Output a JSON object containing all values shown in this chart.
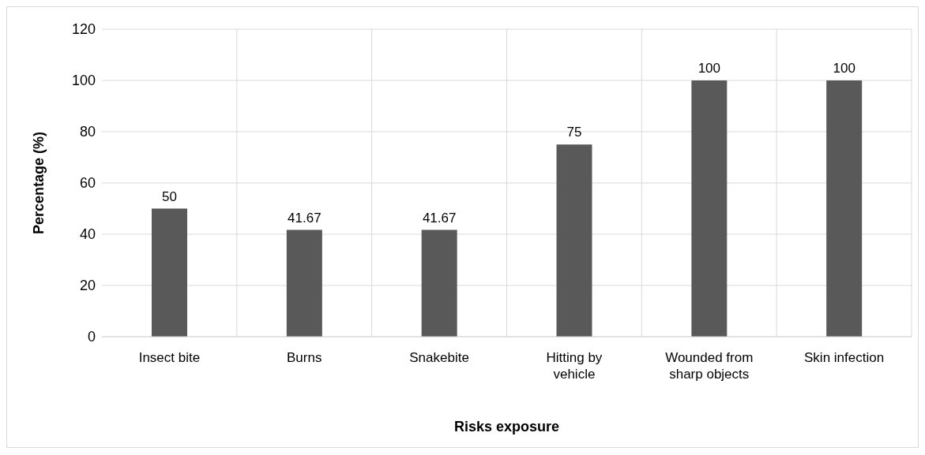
{
  "chart_data": {
    "type": "bar",
    "xlabel": "Risks exposure",
    "ylabel": "Percentage (%)",
    "categories": [
      "Insect bite",
      "Burns",
      "Snakebite",
      "Hitting by vehicle",
      "Wounded from sharp objects",
      "Skin infection"
    ],
    "values": [
      50,
      41.67,
      41.67,
      75,
      100,
      100
    ],
    "color": "#595959",
    "ylim": [
      0,
      120
    ],
    "yticks": [
      0,
      20,
      40,
      60,
      80,
      100,
      120
    ],
    "grid": true,
    "data_labels": true
  }
}
